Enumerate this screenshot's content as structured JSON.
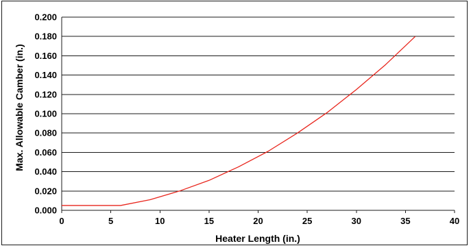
{
  "chart_data": {
    "type": "line",
    "title": "",
    "xlabel": "Heater Length (in.)",
    "ylabel": "Max. Allowable Camber (in.)",
    "xlim": [
      0,
      40
    ],
    "ylim": [
      0,
      0.2
    ],
    "x_ticks": [
      "0",
      "5",
      "10",
      "15",
      "20",
      "25",
      "30",
      "35",
      "40"
    ],
    "y_ticks": [
      "0.000",
      "0.020",
      "0.040",
      "0.060",
      "0.080",
      "0.100",
      "0.120",
      "0.140",
      "0.160",
      "0.180",
      "0.200"
    ],
    "grid": "horizontal",
    "legend": "none",
    "series": [
      {
        "color": "#e8251c",
        "x": [
          0,
          3,
          6,
          9,
          12,
          15,
          18,
          21,
          24,
          27,
          30,
          33,
          36
        ],
        "y": [
          0.005,
          0.005,
          0.005,
          0.011,
          0.02,
          0.031,
          0.045,
          0.061,
          0.08,
          0.101,
          0.125,
          0.151,
          0.18
        ]
      }
    ]
  }
}
